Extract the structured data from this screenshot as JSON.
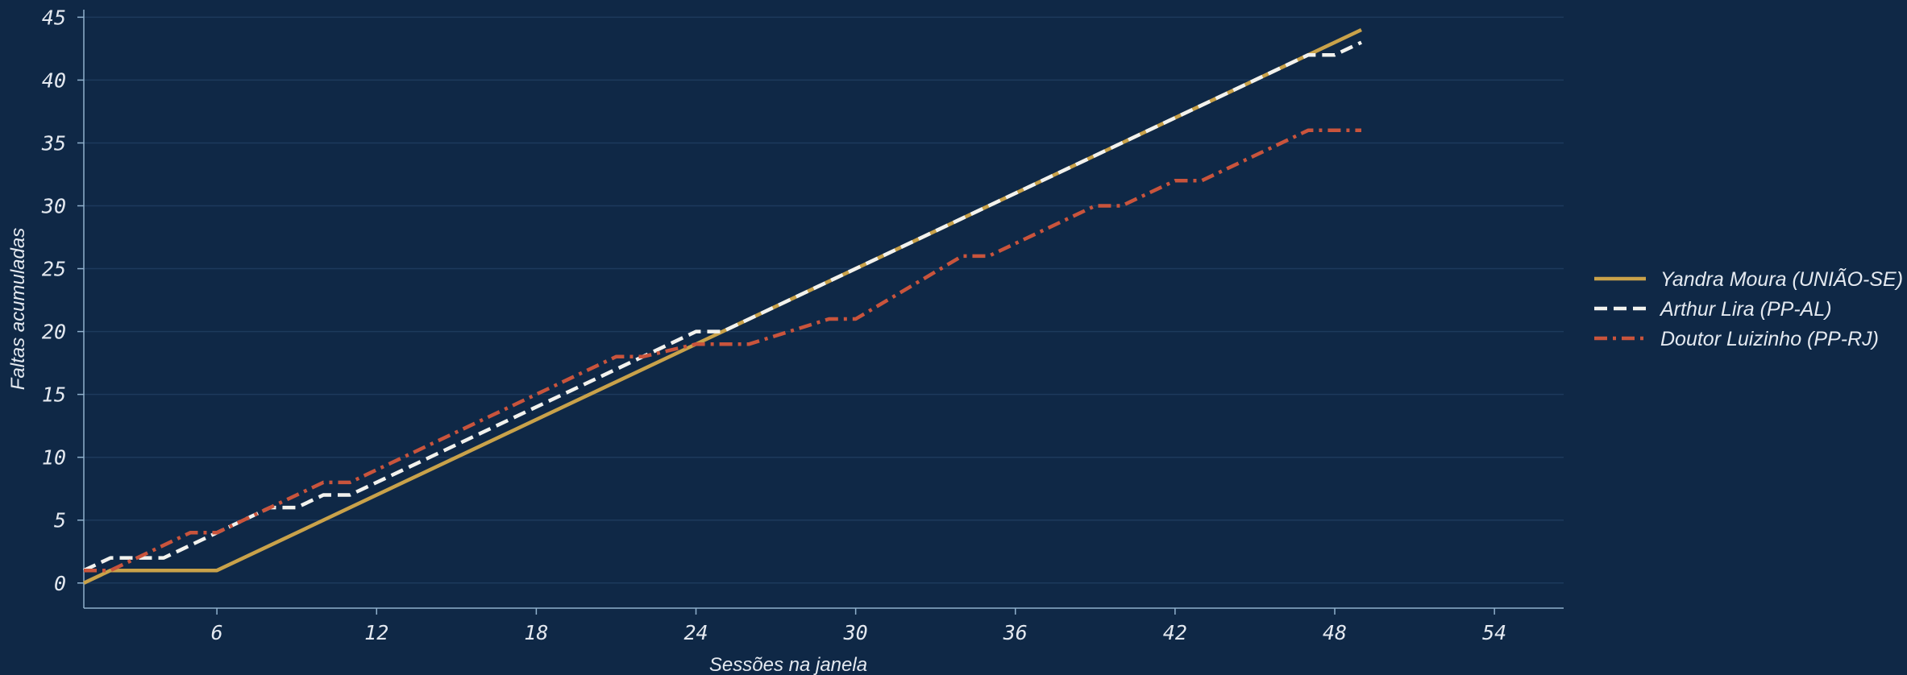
{
  "chart_data": {
    "type": "line",
    "title": "",
    "xlabel": "Sessões na janela",
    "ylabel": "Faltas acumuladas",
    "xlim": [
      1,
      56.6
    ],
    "ylim": [
      -2,
      45.6
    ],
    "xticks": [
      6,
      12,
      18,
      24,
      30,
      36,
      42,
      48,
      54
    ],
    "yticks": [
      0,
      5,
      10,
      15,
      20,
      25,
      30,
      35,
      40,
      45
    ],
    "grid": "horizontal",
    "legend": "right",
    "colors": {
      "background": "#0f2846",
      "axis": "#8fb0cc",
      "grid": "#1d3a5c",
      "text": "#e4e9f0"
    },
    "series": [
      {
        "name": "Yandra Moura (UNIÃO-SE)",
        "color": "#c9a24a",
        "dash": "solid",
        "points": [
          [
            1,
            0
          ],
          [
            2,
            1
          ],
          [
            6,
            1
          ],
          [
            49,
            44
          ]
        ]
      },
      {
        "name": "Arthur Lira (PP-AL)",
        "color": "#f2f2ee",
        "dash": "dashed",
        "points": [
          [
            1,
            1
          ],
          [
            2,
            2
          ],
          [
            4,
            2
          ],
          [
            5,
            3
          ],
          [
            7,
            5
          ],
          [
            8,
            6
          ],
          [
            9,
            6
          ],
          [
            10,
            7
          ],
          [
            11,
            7
          ],
          [
            24,
            20
          ],
          [
            25,
            20
          ],
          [
            47,
            42
          ],
          [
            48,
            42
          ],
          [
            49,
            43
          ]
        ]
      },
      {
        "name": "Doutor Luizinho (PP-RJ)",
        "color": "#c9543c",
        "dash": "dashdot",
        "points": [
          [
            1,
            1
          ],
          [
            2,
            1
          ],
          [
            5,
            4
          ],
          [
            6,
            4
          ],
          [
            10,
            8
          ],
          [
            11,
            8
          ],
          [
            21,
            18
          ],
          [
            22,
            18
          ],
          [
            24,
            19
          ],
          [
            26,
            19
          ],
          [
            29,
            21
          ],
          [
            30,
            21
          ],
          [
            34,
            26
          ],
          [
            35,
            26
          ],
          [
            39,
            30
          ],
          [
            40,
            30
          ],
          [
            42,
            32
          ],
          [
            43,
            32
          ],
          [
            47,
            36
          ],
          [
            49,
            36
          ]
        ]
      }
    ]
  }
}
